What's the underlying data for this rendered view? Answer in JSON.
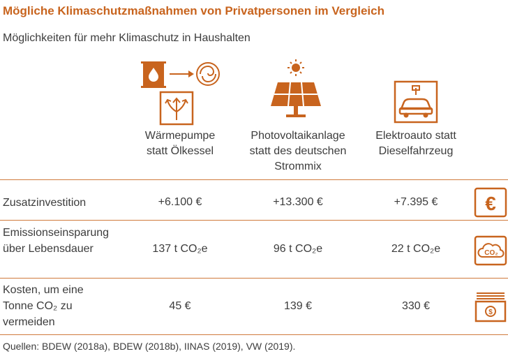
{
  "title": "Mögliche Klimaschutzmaßnahmen von Privatpersonen im Vergleich",
  "subtitle": "Möglichkeiten für mehr Klimaschutz in Haushalten",
  "columns": [
    {
      "label": "Wärmepumpe statt Ölkessel",
      "icon": "oil-to-heatpump-icon"
    },
    {
      "label": "Photovoltaikanlage statt des deutschen Strommix",
      "icon": "solar-panel-icon"
    },
    {
      "label": "Elektroauto statt Dieselfahrzeug",
      "icon": "electric-car-icon"
    }
  ],
  "rows": [
    {
      "label": "Zusatzinvestition",
      "values": [
        "+6.100 €",
        "+13.300 €",
        "+7.395 €"
      ],
      "icon": "euro-icon"
    },
    {
      "label": "Emissionseinsparung über Lebensdauer",
      "values": [
        "137 t CO₂e",
        "96 t CO₂e",
        "22 t CO₂e"
      ],
      "icon": "co2-cloud-icon"
    },
    {
      "label": "Kosten, um eine Tonne CO₂ zu vermeiden",
      "values": [
        "45 €",
        "139 €",
        "330 €"
      ],
      "icon": "money-bills-icon"
    }
  ],
  "icon_text": {
    "euro": "€",
    "co2": "CO₂",
    "coin": "$"
  },
  "source": "Quellen: BDEW (2018a), BDEW (2018b), IINAS (2019), VW (2019).",
  "colors": {
    "accent": "#c8641e",
    "text": "#3c3c3c",
    "rule": "#d07a3c"
  }
}
